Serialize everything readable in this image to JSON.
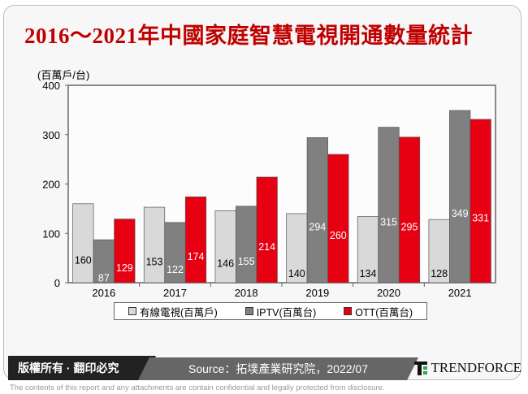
{
  "title": "2016～2021年中國家庭智慧電視開通數量統計",
  "chart_data": {
    "type": "bar",
    "title": "2016～2021年中國家庭智慧電視開通數量統計",
    "ylabel": "(百萬戶/台)",
    "ylim": [
      0,
      400
    ],
    "yticks": [
      "0",
      "100",
      "200",
      "300",
      "400"
    ],
    "categories": [
      "2016",
      "2017",
      "2018",
      "2019",
      "2020",
      "2021"
    ],
    "series": [
      {
        "name": "有線電視(百萬戶)",
        "values": [
          160,
          153,
          146,
          140,
          134,
          128
        ],
        "color": "#d9d9d9"
      },
      {
        "name": "IPTV(百萬台)",
        "values": [
          87,
          122,
          155,
          294,
          315,
          349
        ],
        "color": "#808080"
      },
      {
        "name": "OTT(百萬台)",
        "values": [
          129,
          174,
          214,
          260,
          295,
          331
        ],
        "color": "#e60012"
      }
    ],
    "legend": "bottom",
    "grid": false
  },
  "footer": {
    "copyright": "版權所有 · 翻印必究",
    "source": "Source：拓墣產業研究院，2022/07",
    "brand": "TRENDFORCE",
    "disclaimer": "The contents of this report and any attachments are contain confidential and legally protected from disclosure."
  }
}
